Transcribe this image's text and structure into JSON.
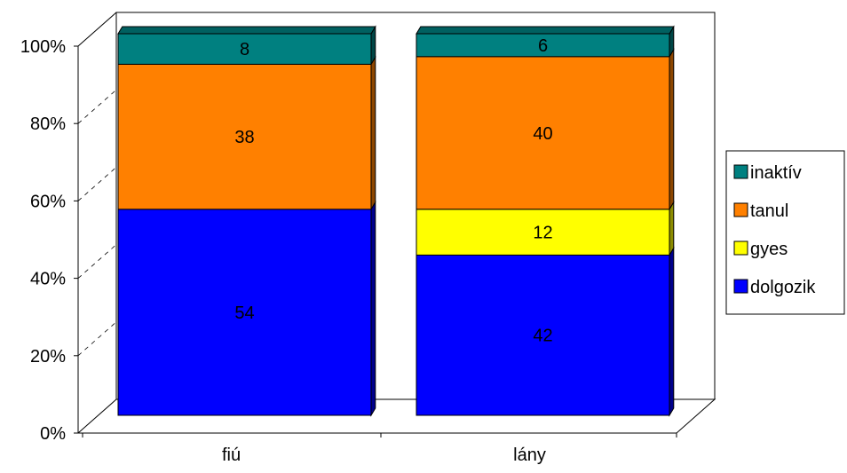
{
  "chart_data": {
    "type": "bar",
    "stacked": "percent",
    "three_d": true,
    "title": "",
    "xlabel": "",
    "ylabel": "",
    "ylim": [
      0,
      100
    ],
    "y_ticks": [
      "0%",
      "20%",
      "40%",
      "60%",
      "80%",
      "100%"
    ],
    "categories": [
      "fiú",
      "lány"
    ],
    "series": [
      {
        "name": "dolgozik",
        "color": "#0000FF",
        "values": [
          54,
          42
        ]
      },
      {
        "name": "gyes",
        "color": "#FFFF00",
        "values": [
          0,
          12
        ]
      },
      {
        "name": "tanul",
        "color": "#FF8000",
        "values": [
          38,
          40
        ]
      },
      {
        "name": "inaktív",
        "color": "#008080",
        "values": [
          8,
          6
        ]
      }
    ],
    "gridlines": "dashed",
    "legend_position": "right"
  }
}
